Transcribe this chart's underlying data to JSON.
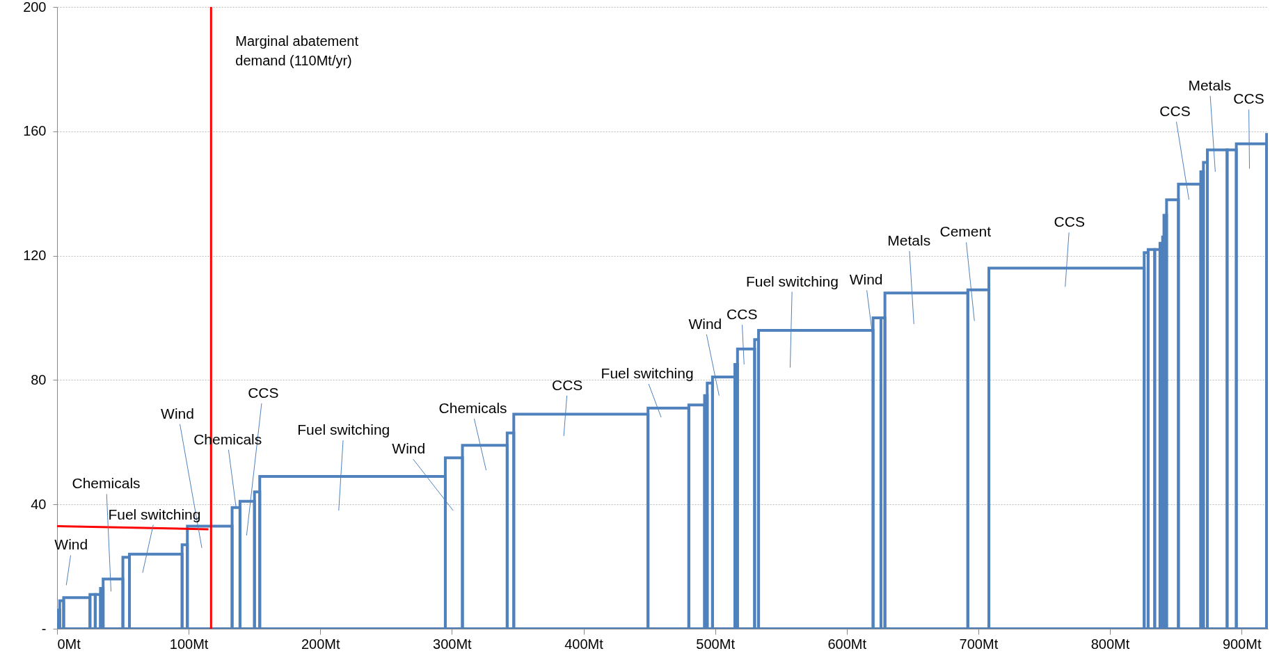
{
  "chart_data": {
    "type": "histogram",
    "color": "#4f81bd",
    "bins": [
      0,
      2,
      5,
      25,
      29,
      33,
      35,
      50,
      55,
      95,
      99,
      133,
      139,
      150,
      154,
      295,
      308,
      342,
      347,
      449,
      480,
      492,
      494,
      498,
      515,
      517,
      530,
      533,
      620,
      626,
      629,
      692,
      708,
      826,
      829,
      834,
      838,
      840,
      841,
      843,
      852,
      869,
      871,
      874,
      889,
      896,
      919,
      920
    ],
    "values": [
      6,
      9,
      10,
      11,
      11,
      13,
      16,
      23,
      24,
      27,
      33,
      39,
      41,
      44,
      49,
      55,
      59,
      63,
      69,
      71,
      72,
      75,
      79,
      81,
      85,
      90,
      93,
      96,
      100,
      100,
      108,
      109,
      116,
      121,
      122,
      122,
      124,
      126,
      133,
      138,
      143,
      147,
      150,
      154,
      154,
      156,
      159
    ],
    "series": [
      {
        "type": "line",
        "color": "#ff0000",
        "x": [
          0,
          115
        ],
        "values": [
          33,
          32
        ]
      }
    ],
    "xlim": [
      0,
      920
    ],
    "xticks": [
      {
        "value": 0,
        "label": "0Mt"
      },
      {
        "value": 100,
        "label": "100Mt"
      },
      {
        "value": 200,
        "label": "200Mt"
      },
      {
        "value": 300,
        "label": "300Mt"
      },
      {
        "value": 400,
        "label": "400Mt"
      },
      {
        "value": 500,
        "label": "500Mt"
      },
      {
        "value": 600,
        "label": "600Mt"
      },
      {
        "value": 700,
        "label": "700Mt"
      },
      {
        "value": 800,
        "label": "800Mt"
      },
      {
        "value": 900,
        "label": "900Mt"
      }
    ],
    "ylim": [
      0,
      200
    ],
    "yticks": [
      {
        "value": 0,
        "label": "-"
      },
      40,
      80,
      120,
      160,
      200
    ],
    "grid": "y",
    "ref_lines": [
      {
        "axis": "x",
        "value": 117,
        "label": "Marginal abatement demand (110Mt/yr)",
        "color": "#ff0000"
      }
    ],
    "annotations": [
      "Wind",
      "Chemicals",
      "Fuel switching",
      "Wind",
      {
        "text": "Chemicals",
        "x": 136,
        "y": 39
      },
      "CCS",
      "Fuel switching",
      "Wind",
      "Chemicals",
      "CCS",
      "Fuel switching",
      "Wind",
      "CCS",
      "Fuel switching",
      {
        "text": "Wind",
        "x": 620,
        "y": 93
      },
      "Metals",
      "Cement",
      "CCS",
      "CCS",
      "Metals",
      "CCS"
    ]
  }
}
